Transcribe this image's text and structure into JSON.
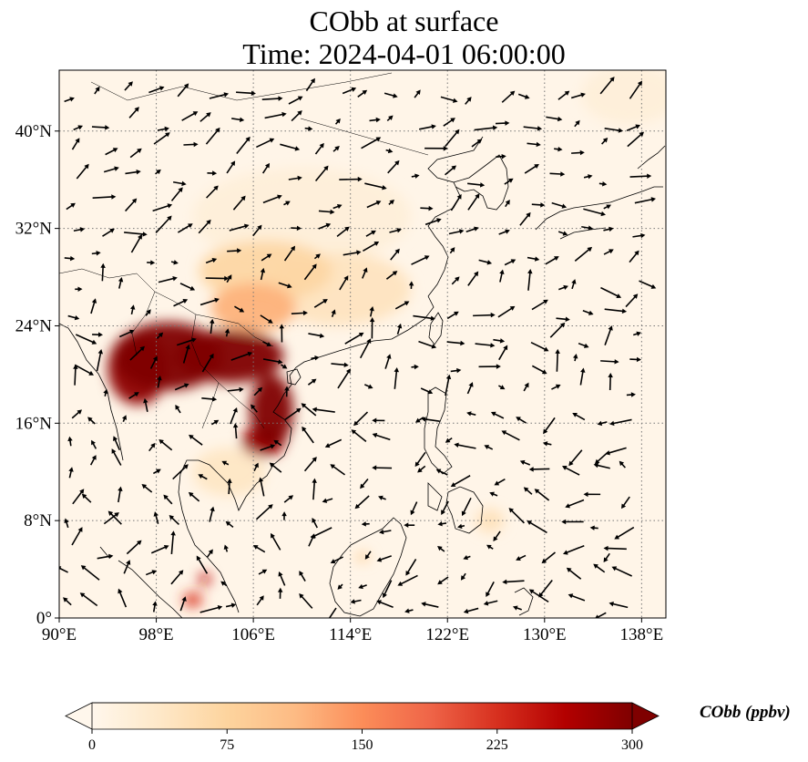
{
  "title": {
    "line1": "CObb at surface",
    "line2": "Time: 2024-04-01 06:00:00"
  },
  "map": {
    "variable": "CObb",
    "level": "surface",
    "extent": {
      "lon": [
        90,
        140
      ],
      "lat": [
        0,
        45
      ]
    },
    "gridlines": "dotted",
    "x_ticks": [
      {
        "value": 90,
        "label": "90°E"
      },
      {
        "value": 98,
        "label": "98°E"
      },
      {
        "value": 106,
        "label": "106°E"
      },
      {
        "value": 114,
        "label": "114°E"
      },
      {
        "value": 122,
        "label": "122°E"
      },
      {
        "value": 130,
        "label": "130°E"
      },
      {
        "value": 138,
        "label": "138°E"
      }
    ],
    "y_ticks": [
      {
        "value": 0,
        "label": "0°"
      },
      {
        "value": 8,
        "label": "8°N"
      },
      {
        "value": 16,
        "label": "16°N"
      },
      {
        "value": 24,
        "label": "24°N"
      },
      {
        "value": 32,
        "label": "32°N"
      },
      {
        "value": 40,
        "label": "40°N"
      }
    ],
    "hotspots": [
      {
        "lon": 99,
        "lat": 21.5,
        "rlon": 4.5,
        "rlat": 2.8,
        "value": 300
      },
      {
        "lon": 104,
        "lat": 21.5,
        "rlon": 4.5,
        "rlat": 2.2,
        "value": 300
      },
      {
        "lon": 96.5,
        "lat": 20.5,
        "rlon": 2.5,
        "rlat": 3.0,
        "value": 290
      },
      {
        "lon": 107.5,
        "lat": 17,
        "rlon": 1.8,
        "rlat": 3.0,
        "value": 300
      },
      {
        "lon": 106.8,
        "lat": 14.5,
        "rlon": 1.8,
        "rlat": 1.3,
        "value": 280
      },
      {
        "lon": 106,
        "lat": 25.5,
        "rlon": 3.5,
        "rlat": 2.0,
        "value": 120
      },
      {
        "lon": 107,
        "lat": 28.5,
        "rlon": 5.5,
        "rlat": 2.5,
        "value": 70
      },
      {
        "lon": 113,
        "lat": 27,
        "rlon": 6.0,
        "rlat": 3.0,
        "value": 45
      },
      {
        "lon": 110,
        "lat": 33,
        "rlon": 9.0,
        "rlat": 4.0,
        "value": 20
      },
      {
        "lon": 102,
        "lat": 3.2,
        "rlon": 0.5,
        "rlat": 0.5,
        "value": 250
      },
      {
        "lon": 101,
        "lat": 1.5,
        "rlon": 0.8,
        "rlat": 0.6,
        "value": 220
      },
      {
        "lon": 115,
        "lat": 5,
        "rlon": 0.6,
        "rlat": 0.4,
        "value": 80
      },
      {
        "lon": 125.5,
        "lat": 8,
        "rlon": 1.2,
        "rlat": 1.0,
        "value": 50
      },
      {
        "lon": 104,
        "lat": 12,
        "rlon": 3.0,
        "rlat": 2.0,
        "value": 40
      },
      {
        "lon": 137,
        "lat": 43,
        "rlon": 4.0,
        "rlat": 2.5,
        "value": 20
      }
    ]
  },
  "colorbar": {
    "label": "CObb (ppbv)",
    "min": 0,
    "max": 300,
    "extend": "both",
    "colormap": "OrRd",
    "colors": [
      "#fff7ec",
      "#fee8c8",
      "#fdd49e",
      "#fdbb84",
      "#fc8d59",
      "#ef6548",
      "#d7301f",
      "#b30000",
      "#7f0000"
    ],
    "ticks": [
      {
        "value": 0,
        "label": "0"
      },
      {
        "value": 75,
        "label": "75"
      },
      {
        "value": 150,
        "label": "150"
      },
      {
        "value": 225,
        "label": "225"
      },
      {
        "value": 300,
        "label": "300"
      }
    ]
  },
  "wind_vectors": "black-arrows"
}
